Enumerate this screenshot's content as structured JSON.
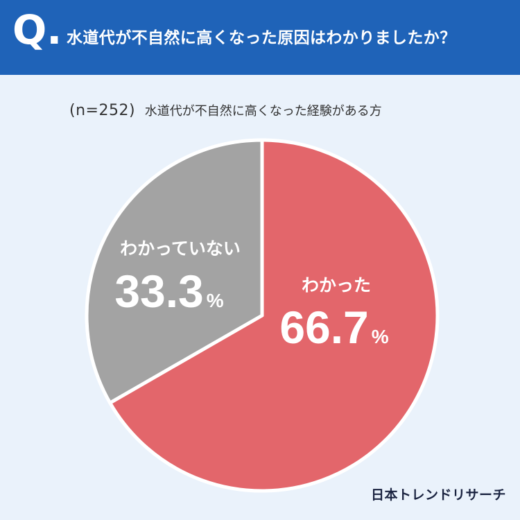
{
  "header": {
    "q_mark": "Q.",
    "question": "水道代が不自然に高くなった原因はわかりましたか？"
  },
  "subtitle": {
    "n_label": "(n=252)",
    "text": "水道代が不自然に高くなった経験がある方"
  },
  "chart_data": {
    "type": "pie",
    "categories": [
      "わかった",
      "わかっていない"
    ],
    "values": [
      66.7,
      33.3
    ],
    "display_values": [
      "66.7",
      "33.3"
    ],
    "unit": "%",
    "colors": [
      "#e3666b",
      "#a3a3a3"
    ]
  },
  "brand": "日本トレンドリサーチ"
}
